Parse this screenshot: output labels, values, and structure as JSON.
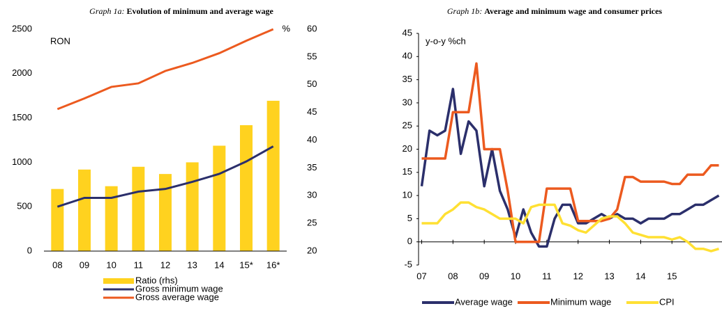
{
  "chart_data": [
    {
      "type": "bar",
      "label": "Graph 1a:",
      "title": "Evolution of minimum and average wage",
      "y_unit": "RON",
      "y2_unit": "%",
      "categories": [
        "08",
        "09",
        "10",
        "11",
        "12",
        "13",
        "14",
        "15*",
        "16*"
      ],
      "ylim": [
        0,
        2500
      ],
      "yticks": [
        0,
        500,
        1000,
        1500,
        2000,
        2500
      ],
      "y2lim": [
        20,
        60
      ],
      "y2ticks": [
        20,
        25,
        30,
        35,
        40,
        45,
        50,
        55,
        60
      ],
      "series": [
        {
          "name": "Ratio (rhs)",
          "kind": "bar",
          "axis": "y2",
          "color": "#ffd21f",
          "values": [
            31.2,
            34.7,
            31.7,
            35.2,
            33.9,
            36.0,
            39.0,
            42.7,
            47.1
          ]
        },
        {
          "name": "Gross minimum wage",
          "kind": "line",
          "color": "#2b2f6b",
          "values": [
            500,
            600,
            600,
            670,
            700,
            780,
            870,
            1010,
            1180
          ]
        },
        {
          "name": "Gross average wage",
          "kind": "line",
          "color": "#ec5a1f",
          "values": [
            1600,
            1720,
            1850,
            1890,
            2030,
            2120,
            2230,
            2370,
            2500
          ]
        }
      ]
    },
    {
      "type": "line",
      "label": "Graph 1b:",
      "title": "Average and minimum wage and consumer prices",
      "y_unit": "y-o-y %ch",
      "x": [
        2007.0,
        2007.25,
        2007.5,
        2007.75,
        2008.0,
        2008.25,
        2008.5,
        2008.75,
        2009.0,
        2009.25,
        2009.5,
        2009.75,
        2010.0,
        2010.25,
        2010.5,
        2010.75,
        2011.0,
        2011.25,
        2011.5,
        2011.75,
        2012.0,
        2012.25,
        2012.5,
        2012.75,
        2013.0,
        2013.25,
        2013.5,
        2013.75,
        2014.0,
        2014.25,
        2014.5,
        2014.75,
        2015.0,
        2015.25,
        2015.5,
        2015.75,
        2016.0,
        2016.25,
        2016.5
      ],
      "xlim": [
        2006.9,
        2016.6
      ],
      "xticks": [
        {
          "value": 2007,
          "label": "07"
        },
        {
          "value": 2008,
          "label": "08"
        },
        {
          "value": 2009,
          "label": "09"
        },
        {
          "value": 2010,
          "label": "10"
        },
        {
          "value": 2011,
          "label": "11"
        },
        {
          "value": 2012,
          "label": "12"
        },
        {
          "value": 2013,
          "label": "13"
        },
        {
          "value": 2014,
          "label": "14"
        },
        {
          "value": 2015,
          "label": "15"
        }
      ],
      "ylim": [
        -5,
        45
      ],
      "yticks": [
        -5,
        0,
        5,
        10,
        15,
        20,
        25,
        30,
        35,
        40,
        45
      ],
      "series": [
        {
          "name": "Average wage",
          "color": "#2b2f6b",
          "values": [
            12,
            24,
            23,
            24,
            33,
            19,
            26,
            24,
            12,
            20,
            11,
            7,
            1,
            7,
            2,
            -1,
            -1,
            5,
            8,
            8,
            4,
            4,
            5,
            6,
            5,
            6,
            5,
            5,
            4,
            5,
            5,
            5,
            6,
            6,
            7,
            8,
            8,
            9,
            10
          ]
        },
        {
          "name": "Minimum wage",
          "color": "#ec5a1f",
          "values": [
            18,
            18,
            18,
            18,
            28,
            28,
            28,
            38.5,
            20,
            20,
            20,
            11,
            0,
            0,
            0,
            0,
            11.5,
            11.5,
            11.5,
            11.5,
            4.5,
            4.5,
            4.5,
            4.5,
            5,
            7,
            14,
            14,
            13,
            13,
            13,
            13,
            12.5,
            12.5,
            14.5,
            14.5,
            14.5,
            16.5,
            16.5
          ]
        },
        {
          "name": "CPI",
          "color": "#ffe033",
          "values": [
            4,
            4,
            4,
            6,
            7,
            8.5,
            8.5,
            7.5,
            7,
            6,
            5,
            5,
            5,
            4,
            7.5,
            8,
            8,
            8,
            4,
            3.5,
            2.5,
            2,
            3.5,
            5,
            5.5,
            5.5,
            4,
            2,
            1.5,
            1,
            1,
            1,
            0.5,
            1,
            0,
            -1.5,
            -1.5,
            -2,
            -1.5
          ]
        }
      ]
    }
  ]
}
